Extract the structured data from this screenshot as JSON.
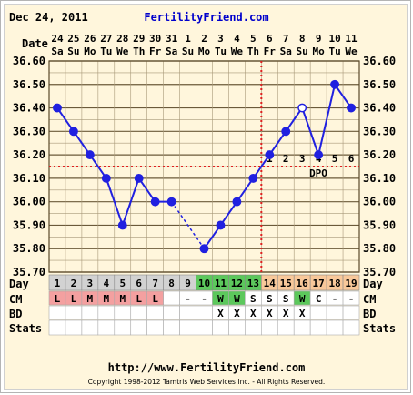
{
  "header": {
    "date": "Dec 24, 2011",
    "site": "FertilityFriend.com"
  },
  "footer": {
    "url": "http://www.FertilityFriend.com",
    "copyright": "Copyright 1998-2012 Tamtris Web Services Inc. - All Rights Reserved."
  },
  "row_labels": {
    "date": "Date",
    "day": "Day",
    "cm": "CM",
    "bd": "BD",
    "stats": "Stats"
  },
  "chart_data": {
    "type": "line",
    "dates": [
      "24",
      "25",
      "26",
      "27",
      "28",
      "29",
      "30",
      "31",
      "1",
      "2",
      "3",
      "4",
      "5",
      "6",
      "7",
      "8",
      "9",
      "10",
      "11"
    ],
    "weekdays": [
      "Sa",
      "Su",
      "Mo",
      "Tu",
      "We",
      "Th",
      "Fr",
      "Sa",
      "Su",
      "Mo",
      "Tu",
      "We",
      "Th",
      "Fr",
      "Sa",
      "Su",
      "Mo",
      "Tu",
      "We"
    ],
    "cycle_days": [
      "1",
      "2",
      "3",
      "4",
      "5",
      "6",
      "7",
      "8",
      "9",
      "10",
      "11",
      "12",
      "13",
      "14",
      "15",
      "16",
      "17",
      "18",
      "19"
    ],
    "temperatures": [
      36.4,
      36.3,
      36.2,
      36.1,
      35.9,
      36.1,
      36.0,
      36.0,
      null,
      35.8,
      35.9,
      36.0,
      36.1,
      36.2,
      36.3,
      36.4,
      36.2,
      36.5,
      36.4
    ],
    "open_circle_days": [
      16
    ],
    "ylim": [
      35.7,
      36.6
    ],
    "yticks": [
      "35.70",
      "35.80",
      "35.90",
      "36.00",
      "36.10",
      "36.20",
      "36.30",
      "36.40",
      "36.50",
      "36.60"
    ],
    "coverline": 36.15,
    "ovulation_day": 13,
    "dpo_label": "DPO",
    "dpo_numbers": [
      "1",
      "2",
      "3",
      "4",
      "5",
      "6"
    ],
    "cm": [
      "L",
      "L",
      "M",
      "M",
      "M",
      "L",
      "L",
      "",
      "-",
      "-",
      "W",
      "W",
      "S",
      "S",
      "S",
      "W",
      "C",
      "-",
      "-"
    ],
    "bd": [
      "",
      "",
      "",
      "",
      "",
      "",
      "",
      "",
      "",
      "",
      "X",
      "X",
      "X",
      "X",
      "X",
      "X",
      "",
      "",
      ""
    ],
    "colors": {
      "line": "#2020e0",
      "coverline": "#e02020",
      "grid": "#a89878",
      "grid_major": "#6b5a3a",
      "menses": "#f4a0a0",
      "fertile": "#5cc85c",
      "luteal": "#f8c89a",
      "day_bg": "#d2d2d2",
      "date_text": "#000000",
      "site_text": "#0000cc"
    }
  }
}
